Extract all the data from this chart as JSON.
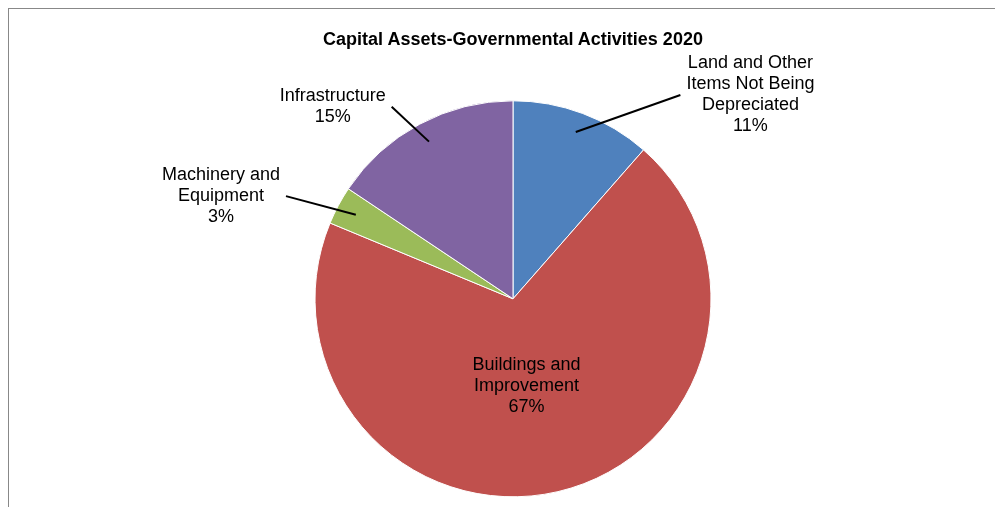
{
  "chart_data": {
    "type": "pie",
    "title": "Capital Assets-Governmental Activities 2020",
    "categories": [
      "Land and Other Items Not Being Depreciated",
      "Buildings and Improvement",
      "Machinery and Equipment",
      "Infrastructure"
    ],
    "values": [
      11,
      67,
      3,
      15
    ],
    "colors": [
      "#4f81bd",
      "#c0504d",
      "#9bbb59",
      "#8064a2"
    ],
    "value_labels": [
      "11%",
      "67%",
      "3%",
      "15%"
    ],
    "legend": false
  }
}
